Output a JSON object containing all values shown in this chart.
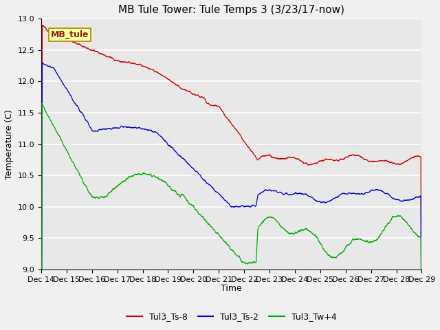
{
  "title": "MB Tule Tower: Tule Temps 3 (3/23/17-now)",
  "xlabel": "Time",
  "ylabel": "Temperature (C)",
  "ylim": [
    9.0,
    13.0
  ],
  "yticks": [
    9.0,
    9.5,
    10.0,
    10.5,
    11.0,
    11.5,
    12.0,
    12.5,
    13.0
  ],
  "xtick_labels": [
    "Dec 14",
    "Dec 15",
    "Dec 16",
    "Dec 17",
    "Dec 18",
    "Dec 19",
    "Dec 20",
    "Dec 21",
    "Dec 22",
    "Dec 23",
    "Dec 24",
    "Dec 25",
    "Dec 26",
    "Dec 27",
    "Dec 28",
    "Dec 29"
  ],
  "bg_color": "#e8e8e8",
  "fig_bg": "#f0f0f0",
  "line_colors": {
    "red": "#cc0000",
    "blue": "#0000cc",
    "green": "#00aa00"
  },
  "legend_labels": [
    "Tul3_Ts-8",
    "Tul3_Ts-2",
    "Tul3_Tw+4"
  ],
  "watermark": "MB_tule",
  "watermark_bg": "#ffffaa",
  "watermark_fg": "#882200",
  "watermark_edge": "#aa8800",
  "title_fontsize": 11,
  "label_fontsize": 9,
  "tick_fontsize": 8,
  "legend_fontsize": 9
}
